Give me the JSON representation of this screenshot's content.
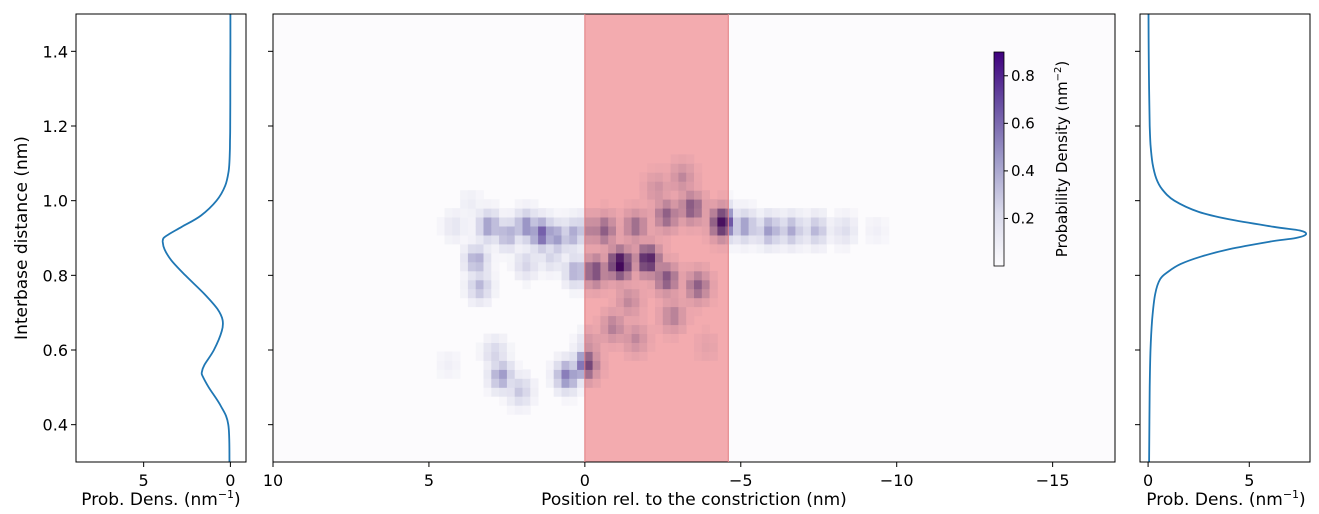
{
  "chart_data": [
    {
      "panel": "left",
      "type": "line",
      "xlabel": "Prob. Dens. (nm",
      "xlabel_sup": "−1",
      "xlabel_suffix": ")",
      "ylabel": "Interbase distance (nm)",
      "xlim": [
        8.9,
        -0.9
      ],
      "ylim": [
        0.3,
        1.5
      ],
      "xticks": [
        5,
        0
      ],
      "xtick_labels": [
        "5",
        "0"
      ],
      "yticks": [
        0.4,
        0.6,
        0.8,
        1.0,
        1.2,
        1.4
      ],
      "ytick_labels": [
        "0.4",
        "0.6",
        "0.8",
        "1.0",
        "1.2",
        "1.4"
      ],
      "line_color": "#1f77b4",
      "series": [
        {
          "y": [
            0.3,
            0.4,
            0.45,
            0.5,
            0.53,
            0.54,
            0.56,
            0.6,
            0.65,
            0.68,
            0.71,
            0.75,
            0.8,
            0.84,
            0.87,
            0.89,
            0.9,
            0.91,
            0.93,
            0.96,
            1.0,
            1.04,
            1.08,
            1.12,
            1.16,
            1.2,
            1.3,
            1.4,
            1.5
          ],
          "x": [
            0.05,
            0.12,
            0.55,
            1.25,
            1.6,
            1.65,
            1.5,
            0.95,
            0.5,
            0.45,
            0.75,
            1.5,
            2.6,
            3.4,
            3.8,
            3.9,
            3.85,
            3.55,
            2.8,
            1.7,
            0.8,
            0.3,
            0.1,
            0.04,
            0.02,
            0.01,
            0.005,
            0.002,
            0.001
          ]
        }
      ]
    },
    {
      "panel": "center",
      "type": "heatmap",
      "xlabel": "Position rel. to the constriction (nm)",
      "xlim": [
        10,
        -17
      ],
      "ylim": [
        0.3,
        1.5
      ],
      "xticks": [
        10,
        5,
        0,
        -5,
        -10,
        -15
      ],
      "xtick_labels": [
        "10",
        "5",
        "0",
        "−5",
        "−10",
        "−15"
      ],
      "yticks": [
        0.4,
        0.6,
        0.8,
        1.0,
        1.2,
        1.4
      ],
      "highlight": {
        "x_from": 0,
        "x_to": -4.6,
        "color": "#f4a0a3"
      },
      "colormap": "Purples",
      "colorbar": {
        "label": "Probability Density (nm",
        "label_sup": "−2",
        "label_suffix": ")",
        "range": [
          0,
          0.9
        ],
        "ticks": [
          0.2,
          0.4,
          0.6,
          0.8
        ],
        "tick_labels": [
          "0.2",
          "0.4",
          "0.6",
          "0.8"
        ]
      },
      "bins": {
        "x_width": 0.25,
        "y_height": 0.024
      },
      "blobs": [
        {
          "x": 3.2,
          "y": 0.92,
          "v": 0.45
        },
        {
          "x": 2.6,
          "y": 0.9,
          "v": 0.4
        },
        {
          "x": 2.0,
          "y": 0.92,
          "v": 0.5
        },
        {
          "x": 1.5,
          "y": 0.9,
          "v": 0.65
        },
        {
          "x": 1.0,
          "y": 0.89,
          "v": 0.45
        },
        {
          "x": 0.5,
          "y": 0.9,
          "v": 0.4
        },
        {
          "x": 0.1,
          "y": 0.91,
          "v": 0.35
        },
        {
          "x": 3.6,
          "y": 0.83,
          "v": 0.4
        },
        {
          "x": 3.5,
          "y": 0.76,
          "v": 0.35
        },
        {
          "x": 0.4,
          "y": 0.8,
          "v": 0.4
        },
        {
          "x": 2.0,
          "y": 0.82,
          "v": 0.25
        },
        {
          "x": 1.2,
          "y": 0.84,
          "v": 0.25
        },
        {
          "x": 3.0,
          "y": 0.58,
          "v": 0.25
        },
        {
          "x": 2.8,
          "y": 0.52,
          "v": 0.45
        },
        {
          "x": 2.2,
          "y": 0.48,
          "v": 0.3
        },
        {
          "x": 0.7,
          "y": 0.52,
          "v": 0.55
        },
        {
          "x": 0.1,
          "y": 0.55,
          "v": 0.65
        },
        {
          "x": 0.0,
          "y": 0.6,
          "v": 0.25
        },
        {
          "x": -0.2,
          "y": 0.8,
          "v": 0.6
        },
        {
          "x": -1.0,
          "y": 0.82,
          "v": 0.9
        },
        {
          "x": -1.9,
          "y": 0.83,
          "v": 0.8
        },
        {
          "x": -2.5,
          "y": 0.78,
          "v": 0.55
        },
        {
          "x": -3.5,
          "y": 0.76,
          "v": 0.5
        },
        {
          "x": -0.5,
          "y": 0.91,
          "v": 0.5
        },
        {
          "x": -1.5,
          "y": 0.92,
          "v": 0.45
        },
        {
          "x": -2.5,
          "y": 0.95,
          "v": 0.5
        },
        {
          "x": -3.3,
          "y": 0.97,
          "v": 0.55
        },
        {
          "x": -4.3,
          "y": 0.93,
          "v": 0.85
        },
        {
          "x": -0.8,
          "y": 0.65,
          "v": 0.35
        },
        {
          "x": -1.5,
          "y": 0.62,
          "v": 0.3
        },
        {
          "x": -2.7,
          "y": 0.68,
          "v": 0.35
        },
        {
          "x": -1.3,
          "y": 0.72,
          "v": 0.3
        },
        {
          "x": -3.0,
          "y": 1.05,
          "v": 0.3
        },
        {
          "x": -2.2,
          "y": 1.02,
          "v": 0.25
        },
        {
          "x": -5.0,
          "y": 0.92,
          "v": 0.45
        },
        {
          "x": -5.8,
          "y": 0.91,
          "v": 0.45
        },
        {
          "x": -6.5,
          "y": 0.91,
          "v": 0.4
        },
        {
          "x": -7.3,
          "y": 0.91,
          "v": 0.35
        },
        {
          "x": -8.2,
          "y": 0.91,
          "v": 0.2
        },
        {
          "x": -9.2,
          "y": 0.91,
          "v": 0.08
        },
        {
          "x": 4.3,
          "y": 0.92,
          "v": 0.15
        },
        {
          "x": 4.5,
          "y": 0.55,
          "v": 0.08
        },
        {
          "x": -3.8,
          "y": 0.6,
          "v": 0.1
        },
        {
          "x": 3.8,
          "y": 0.98,
          "v": 0.1
        }
      ]
    },
    {
      "panel": "right",
      "type": "line",
      "xlabel": "Prob. Dens. (nm",
      "xlabel_sup": "−1",
      "xlabel_suffix": ")",
      "xlim": [
        -0.4,
        8.0
      ],
      "ylim": [
        0.3,
        1.5
      ],
      "xticks": [
        0,
        5
      ],
      "xtick_labels": [
        "0",
        "5"
      ],
      "yticks": [
        0.4,
        0.6,
        0.8,
        1.0,
        1.2,
        1.4
      ],
      "line_color": "#1f77b4",
      "series": [
        {
          "y": [
            0.3,
            0.5,
            0.6,
            0.68,
            0.75,
            0.79,
            0.81,
            0.83,
            0.85,
            0.87,
            0.89,
            0.9,
            0.91,
            0.92,
            0.93,
            0.95,
            0.97,
            1.0,
            1.03,
            1.06,
            1.1,
            1.15,
            1.2,
            1.3,
            1.4,
            1.5
          ],
          "x": [
            0.05,
            0.08,
            0.12,
            0.2,
            0.35,
            0.6,
            1.0,
            1.6,
            2.6,
            4.0,
            6.0,
            7.3,
            7.8,
            7.5,
            6.2,
            4.0,
            2.5,
            1.3,
            0.7,
            0.4,
            0.22,
            0.12,
            0.08,
            0.05,
            0.03,
            0.02
          ]
        }
      ]
    }
  ]
}
